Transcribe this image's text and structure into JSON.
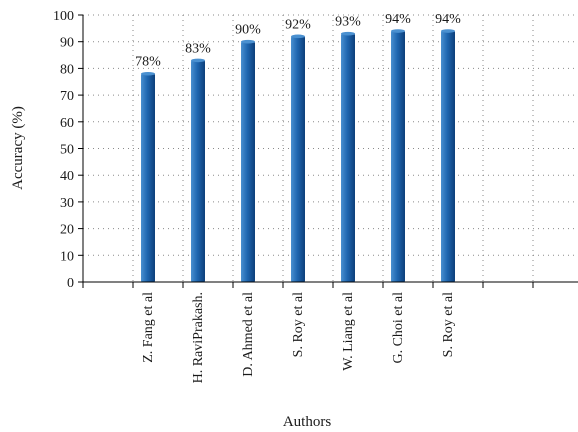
{
  "chart_data": {
    "type": "bar",
    "categories": [
      "Z. Fang et al",
      "H. RaviPrakash.",
      "D. Ahmed et al",
      "S. Roy et al",
      "W. Liang et al",
      "G. Choi et al",
      "S. Roy et al",
      "",
      ""
    ],
    "values": [
      78,
      83,
      90,
      92,
      93,
      94,
      94,
      null,
      null
    ],
    "data_labels": [
      "78%",
      "83%",
      "90%",
      "92%",
      "93%",
      "94%",
      "94%",
      "",
      ""
    ],
    "xlabel": "Authors",
    "ylabel": "Accuracy (%)",
    "ylim": [
      0,
      100
    ],
    "yticks": [
      0,
      10,
      20,
      30,
      40,
      50,
      60,
      70,
      80,
      90,
      100
    ],
    "grid": true,
    "grid_style": "dotted",
    "legend": "none",
    "colors": {
      "bar_light": "#4a90d0",
      "bar_mid": "#1f66b0",
      "bar_dark": "#0d3f7a",
      "grid": "#8a8a8a",
      "axis": "#000000"
    }
  }
}
